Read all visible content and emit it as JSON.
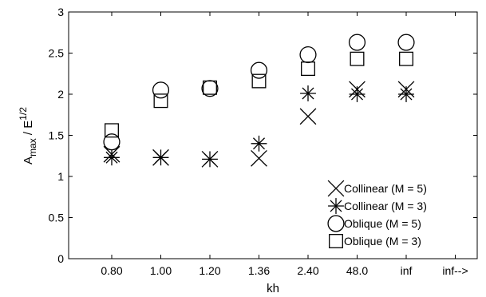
{
  "chart_data": {
    "type": "scatter",
    "title": "",
    "xlabel": "kh",
    "ylabel": {
      "base": "A",
      "base_sub": "max",
      "rest": " / E",
      "rest_sup": "1/2"
    },
    "categories": [
      "0.80",
      "1.00",
      "1.20",
      "1.36",
      "2.40",
      "48.0",
      "inf",
      "inf-->"
    ],
    "ylim": [
      0,
      3
    ],
    "yticks": [
      "0",
      "0.5",
      "1",
      "1.5",
      "2",
      "2.5",
      "3"
    ],
    "grid": false,
    "legend_position": "bottom-right",
    "series": [
      {
        "name": "Collinear (M = 5)",
        "marker": "x",
        "points": [
          {
            "x": "0.80",
            "y": 1.27
          },
          {
            "x": "1.00",
            "y": 1.23
          },
          {
            "x": "1.20",
            "y": 1.21
          },
          {
            "x": "1.36",
            "y": 1.22
          },
          {
            "x": "2.40",
            "y": 1.73
          },
          {
            "x": "48.0",
            "y": 2.06
          },
          {
            "x": "inf",
            "y": 2.06
          }
        ]
      },
      {
        "name": "Collinear (M = 3)",
        "marker": "asterisk",
        "points": [
          {
            "x": "0.80",
            "y": 1.23
          },
          {
            "x": "1.00",
            "y": 1.23
          },
          {
            "x": "1.20",
            "y": 1.21
          },
          {
            "x": "1.36",
            "y": 1.4
          },
          {
            "x": "2.40",
            "y": 2.01
          },
          {
            "x": "48.0",
            "y": 2.0
          },
          {
            "x": "inf",
            "y": 2.0
          }
        ]
      },
      {
        "name": "Oblique (M = 5)",
        "marker": "circle",
        "points": [
          {
            "x": "0.80",
            "y": 1.42
          },
          {
            "x": "1.00",
            "y": 2.05
          },
          {
            "x": "1.20",
            "y": 2.07
          },
          {
            "x": "1.36",
            "y": 2.29
          },
          {
            "x": "2.40",
            "y": 2.48
          },
          {
            "x": "48.0",
            "y": 2.63
          },
          {
            "x": "inf",
            "y": 2.63
          }
        ]
      },
      {
        "name": "Oblique (M = 3)",
        "marker": "square",
        "points": [
          {
            "x": "0.80",
            "y": 1.56
          },
          {
            "x": "1.00",
            "y": 1.92
          },
          {
            "x": "1.20",
            "y": 2.08
          },
          {
            "x": "1.36",
            "y": 2.16
          },
          {
            "x": "2.40",
            "y": 2.31
          },
          {
            "x": "48.0",
            "y": 2.43
          },
          {
            "x": "inf",
            "y": 2.43
          }
        ]
      }
    ]
  }
}
